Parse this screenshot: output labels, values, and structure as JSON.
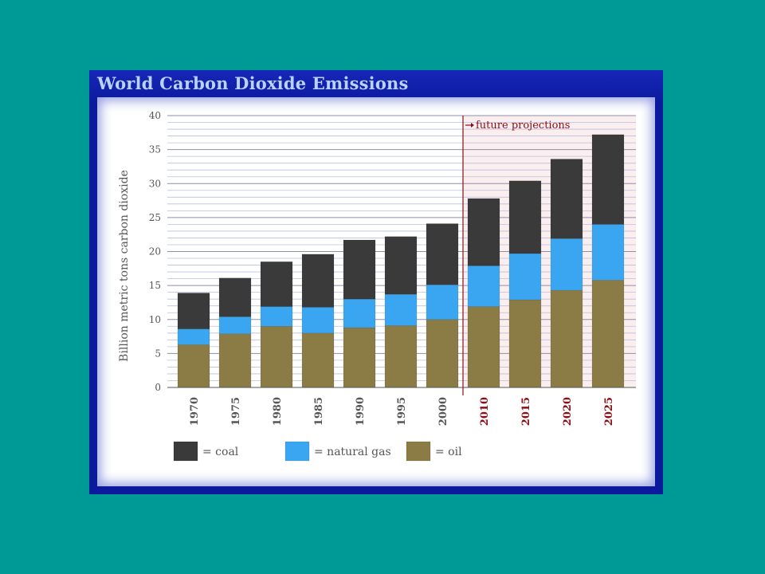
{
  "page": {
    "background": "#009a96"
  },
  "frame": {
    "title": "World Carbon Dioxide Emissions",
    "border_color": "#0a1a9a",
    "title_color": "#b9d2ff"
  },
  "chart_data": {
    "type": "bar",
    "stacked": true,
    "title": "World Carbon Dioxide Emissions",
    "ylabel": "Billion metric tons carbon dioxide",
    "xlabel": "",
    "ylim": [
      0,
      40
    ],
    "yticks": [
      0,
      5,
      10,
      15,
      20,
      25,
      30,
      35,
      40
    ],
    "grid": true,
    "categories": [
      "1970",
      "1975",
      "1980",
      "1985",
      "1990",
      "1995",
      "2000",
      "2010",
      "2015",
      "2020",
      "2025"
    ],
    "projected_categories": [
      "2010",
      "2015",
      "2020",
      "2025"
    ],
    "series": [
      {
        "name": "oil",
        "color": "#8a7c44",
        "values": [
          6.3,
          7.9,
          9.0,
          8.0,
          8.8,
          9.1,
          10.0,
          11.9,
          12.9,
          14.3,
          15.8
        ]
      },
      {
        "name": "natural gas",
        "color": "#3aa6f2",
        "values": [
          2.3,
          2.5,
          2.9,
          3.8,
          4.2,
          4.6,
          5.1,
          6.0,
          6.8,
          7.6,
          8.2
        ]
      },
      {
        "name": "coal",
        "color": "#3a3a3a",
        "values": [
          5.3,
          5.7,
          6.6,
          7.8,
          8.7,
          8.5,
          9.0,
          9.9,
          10.7,
          11.7,
          13.2
        ]
      }
    ],
    "annotation": "future projections",
    "legend": {
      "placement": "bottom",
      "items": [
        {
          "label": "= coal",
          "color": "#3a3a3a"
        },
        {
          "label": "= natural gas",
          "color": "#3aa6f2"
        },
        {
          "label": "= oil",
          "color": "#8a7c44"
        }
      ]
    },
    "colors": {
      "historic_label": "#555555",
      "projected_label": "#8b0d14",
      "projection_shade": "#fbeeee"
    }
  }
}
